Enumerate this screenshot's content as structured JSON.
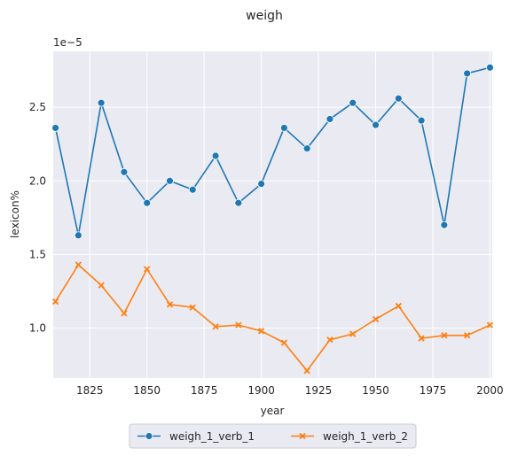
{
  "chart_data": {
    "type": "line",
    "title": "weigh",
    "xlabel": "year",
    "ylabel": "lexicon%",
    "offset_label": "1e−5",
    "x": [
      1810,
      1820,
      1830,
      1840,
      1850,
      1860,
      1870,
      1880,
      1890,
      1900,
      1910,
      1920,
      1930,
      1940,
      1950,
      1960,
      1970,
      1980,
      1990,
      2000
    ],
    "xlim": [
      1809,
      2001
    ],
    "ylim": [
      0.66,
      2.88
    ],
    "xticks": [
      1825,
      1850,
      1875,
      1900,
      1925,
      1950,
      1975,
      2000
    ],
    "xtick_labels": [
      "1825",
      "1850",
      "1875",
      "1900",
      "1925",
      "1950",
      "1975",
      "2000"
    ],
    "yticks": [
      1.0,
      1.5,
      2.0,
      2.5
    ],
    "ytick_labels": [
      "1.0",
      "1.5",
      "2.0",
      "2.5"
    ],
    "grid": true,
    "legend_position": "bottom-center",
    "series": [
      {
        "name": "weigh_1_verb_1",
        "color": "#1f77b4",
        "marker": "circle",
        "values": [
          2.36,
          1.63,
          2.53,
          2.06,
          1.85,
          2.0,
          1.94,
          2.17,
          1.85,
          1.98,
          2.36,
          2.22,
          2.42,
          2.53,
          2.38,
          2.56,
          2.41,
          1.7,
          2.73,
          2.77
        ]
      },
      {
        "name": "weigh_1_verb_2",
        "color": "#ff7f0e",
        "marker": "x",
        "values": [
          1.18,
          1.43,
          1.29,
          1.1,
          1.4,
          1.16,
          1.14,
          1.01,
          1.02,
          0.98,
          0.9,
          0.71,
          0.92,
          0.96,
          1.06,
          1.15,
          0.93,
          0.95,
          0.95,
          1.02
        ]
      }
    ]
  }
}
